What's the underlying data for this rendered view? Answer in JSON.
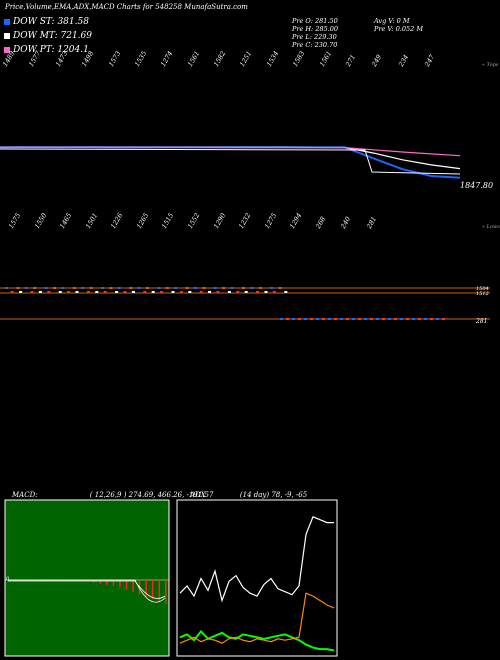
{
  "header": {
    "title": "Price,Volume,EMA,ADX,MACD Charts for 548258 MunafaSutra.com",
    "legend": [
      {
        "label": "DOW ST: 381.58",
        "color": "#1e64ff"
      },
      {
        "label": "DOW MT: 721.69",
        "color": "#ffffff"
      },
      {
        "label": "DOW PT: 1204.1",
        "color": "#ff66cc"
      }
    ],
    "stats_left": [
      "Pre   O: 281.50",
      "Pre   H: 285.00",
      "Pre   L: 229.30",
      "Pre   C: 230.70"
    ],
    "stats_right": [
      "Avg V: 0   M",
      "Pre   V: 0.052  M"
    ]
  },
  "top_ticks": [
    "1489",
    "1577",
    "1473",
    "1498",
    "1573",
    "1535",
    "1274",
    "1561",
    "1582",
    "1251",
    "1534",
    "1583",
    "1561",
    "271",
    "249",
    "234",
    "247"
  ],
  "top_right_label": "« Tops",
  "price_last": "1847.80",
  "bottom_ticks": [
    "1575",
    "1550",
    "1465",
    "1501",
    "1226",
    "1265",
    "1515",
    "1552",
    "1290",
    "1232",
    "1275",
    "1294",
    "268",
    "240",
    "281"
  ],
  "bottom_right_label": "« Lows",
  "volume_labels": {
    "upper": "1504",
    "upper2": "1512",
    "lower": "281"
  },
  "macd_panel": {
    "label": "MACD:",
    "values": "( 12,26,9 ) 274.69, 466.26, -191.57",
    "zero_label": "0"
  },
  "adx_panel": {
    "label": "ADX",
    "values": "(14  day) 78,  -9,  -65"
  },
  "chart_data": [
    {
      "type": "line",
      "title": "Price,Volume,EMA,ADX,MACD Charts for 548258 MunafaSutra.com",
      "x_tick_labels_top": [
        "1489",
        "1577",
        "1473",
        "1498",
        "1573",
        "1535",
        "1274",
        "1561",
        "1582",
        "1251",
        "1534",
        "1583",
        "1561",
        "271",
        "249",
        "234",
        "247"
      ],
      "x_tick_labels_bottom": [
        "1575",
        "1550",
        "1465",
        "1501",
        "1226",
        "1265",
        "1515",
        "1552",
        "1290",
        "1232",
        "1275",
        "1294",
        "268",
        "240",
        "281"
      ],
      "series": [
        {
          "name": "DOW ST",
          "color": "#1e64ff",
          "values": [
            1520,
            1522,
            1518,
            1521,
            1519,
            1516,
            1518,
            1517,
            1515,
            1514,
            1513,
            1512,
            1512,
            1100,
            700,
            450,
            381.58
          ]
        },
        {
          "name": "DOW MT",
          "color": "#ffffff",
          "values": [
            1515,
            1516,
            1515,
            1514,
            1514,
            1513,
            1512,
            1511,
            1510,
            1510,
            1509,
            1508,
            1508,
            1300,
            1050,
            860,
            721.69
          ]
        },
        {
          "name": "DOW PT",
          "color": "#ff66cc",
          "values": [
            1510,
            1510,
            1509,
            1509,
            1508,
            1507,
            1507,
            1506,
            1505,
            1505,
            1504,
            1503,
            1503,
            1420,
            1340,
            1270,
            1204.1
          ]
        }
      ],
      "last_label": "1847.80"
    },
    {
      "type": "bar",
      "title": "MACD",
      "params": "12,26,9",
      "values_text": "274.69, 466.26, -191.57",
      "histogram": [
        0,
        0,
        0,
        0,
        0,
        0,
        0,
        0,
        0,
        0,
        0,
        0,
        -1,
        -2,
        -3,
        -4,
        -5,
        -6,
        -8,
        -10,
        -12,
        -14,
        -16,
        -18,
        -20
      ]
    },
    {
      "type": "line",
      "title": "ADX",
      "period": "14 day",
      "values_text": "78, -9, -65",
      "series": [
        {
          "name": "ADX",
          "color": "#ffffff",
          "values": [
            40,
            45,
            38,
            50,
            42,
            55,
            35,
            48,
            52,
            44,
            40,
            38,
            46,
            50,
            43,
            41,
            39,
            45,
            80,
            92,
            90,
            88,
            88
          ]
        },
        {
          "name": "+DI",
          "color": "#00ff00",
          "values": [
            10,
            12,
            8,
            14,
            9,
            11,
            13,
            10,
            9,
            12,
            11,
            10,
            9,
            10,
            11,
            12,
            10,
            8,
            5,
            3,
            2,
            2,
            1
          ]
        },
        {
          "name": "-DI",
          "color": "#ff8c00",
          "values": [
            6,
            8,
            10,
            7,
            9,
            8,
            6,
            9,
            10,
            8,
            7,
            9,
            8,
            7,
            9,
            8,
            9,
            10,
            40,
            38,
            35,
            32,
            30
          ]
        }
      ]
    }
  ]
}
